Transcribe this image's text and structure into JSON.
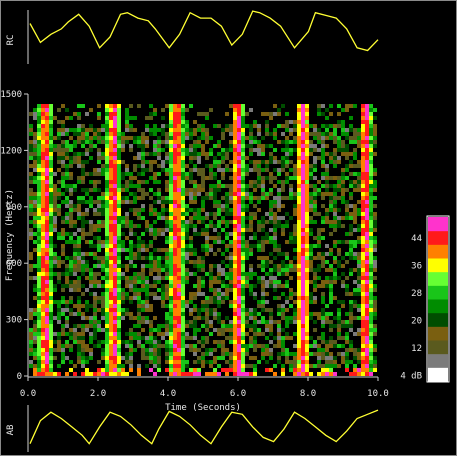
{
  "chart_data": [
    {
      "type": "line",
      "panel": "top-trace",
      "ylabel": "RC",
      "series": [
        {
          "color": "#ffff33",
          "x": [
            0.0,
            0.3,
            0.6,
            0.9,
            1.1,
            1.4,
            1.7,
            2.0,
            2.3,
            2.6,
            2.8,
            3.1,
            3.4,
            3.6,
            4.0,
            4.3,
            4.6,
            4.9,
            5.2,
            5.5,
            5.8,
            6.1,
            6.4,
            6.6,
            6.9,
            7.2,
            7.6,
            8.0,
            8.2,
            8.5,
            8.8,
            9.1,
            9.4,
            9.7,
            10.0
          ],
          "y": [
            0.75,
            0.4,
            0.55,
            0.65,
            0.78,
            0.92,
            0.7,
            0.3,
            0.5,
            0.92,
            0.95,
            0.85,
            0.8,
            0.65,
            0.3,
            0.55,
            0.95,
            0.85,
            0.85,
            0.7,
            0.35,
            0.55,
            0.98,
            0.95,
            0.85,
            0.7,
            0.3,
            0.6,
            0.95,
            0.9,
            0.85,
            0.65,
            0.3,
            0.25,
            0.45
          ]
        }
      ]
    },
    {
      "type": "heatmap",
      "panel": "spectrogram",
      "xlabel": "Time (Seconds)",
      "ylabel": "Frequency (Hertz)",
      "xlim": [
        0,
        10
      ],
      "ylim": [
        0,
        1500
      ],
      "xticks": [
        "0.0",
        "2.0",
        "4.0",
        "6.0",
        "8.0",
        "10.0"
      ],
      "yticks": [
        "0",
        "300",
        "600",
        "900",
        "1200",
        "1500"
      ],
      "inspiration_bursts_s": [
        0.45,
        2.4,
        4.2,
        5.95,
        7.8,
        9.6
      ],
      "colorbar": {
        "labels": [
          "44",
          "36",
          "28",
          "20",
          "12",
          "4 dB"
        ],
        "levels_db": [
          4,
          8,
          12,
          16,
          20,
          24,
          28,
          32,
          36,
          40,
          44,
          48
        ],
        "colors": [
          "#ffffff",
          "#7b7b7b",
          "#5a5a1e",
          "#7a5f10",
          "#004d00",
          "#008c00",
          "#19c519",
          "#66ff33",
          "#ffff00",
          "#ff8000",
          "#ff1a1a",
          "#ff33cc"
        ]
      }
    },
    {
      "type": "line",
      "panel": "bottom-trace",
      "ylabel": "AB",
      "series": [
        {
          "color": "#ffff33",
          "x": [
            0.0,
            0.3,
            0.6,
            0.9,
            1.2,
            1.5,
            1.7,
            2.0,
            2.3,
            2.6,
            2.9,
            3.2,
            3.5,
            3.7,
            4.0,
            4.3,
            4.6,
            4.9,
            5.2,
            5.5,
            5.8,
            6.1,
            6.4,
            6.7,
            7.0,
            7.3,
            7.6,
            7.9,
            8.2,
            8.5,
            8.8,
            9.1,
            9.4,
            9.7,
            10.0
          ],
          "y": [
            0.15,
            0.7,
            0.9,
            0.75,
            0.55,
            0.35,
            0.15,
            0.55,
            0.9,
            0.8,
            0.6,
            0.35,
            0.15,
            0.5,
            0.92,
            0.8,
            0.6,
            0.35,
            0.15,
            0.55,
            0.9,
            0.85,
            0.55,
            0.3,
            0.2,
            0.5,
            0.9,
            0.75,
            0.55,
            0.35,
            0.2,
            0.45,
            0.75,
            0.85,
            0.95
          ]
        }
      ]
    }
  ]
}
